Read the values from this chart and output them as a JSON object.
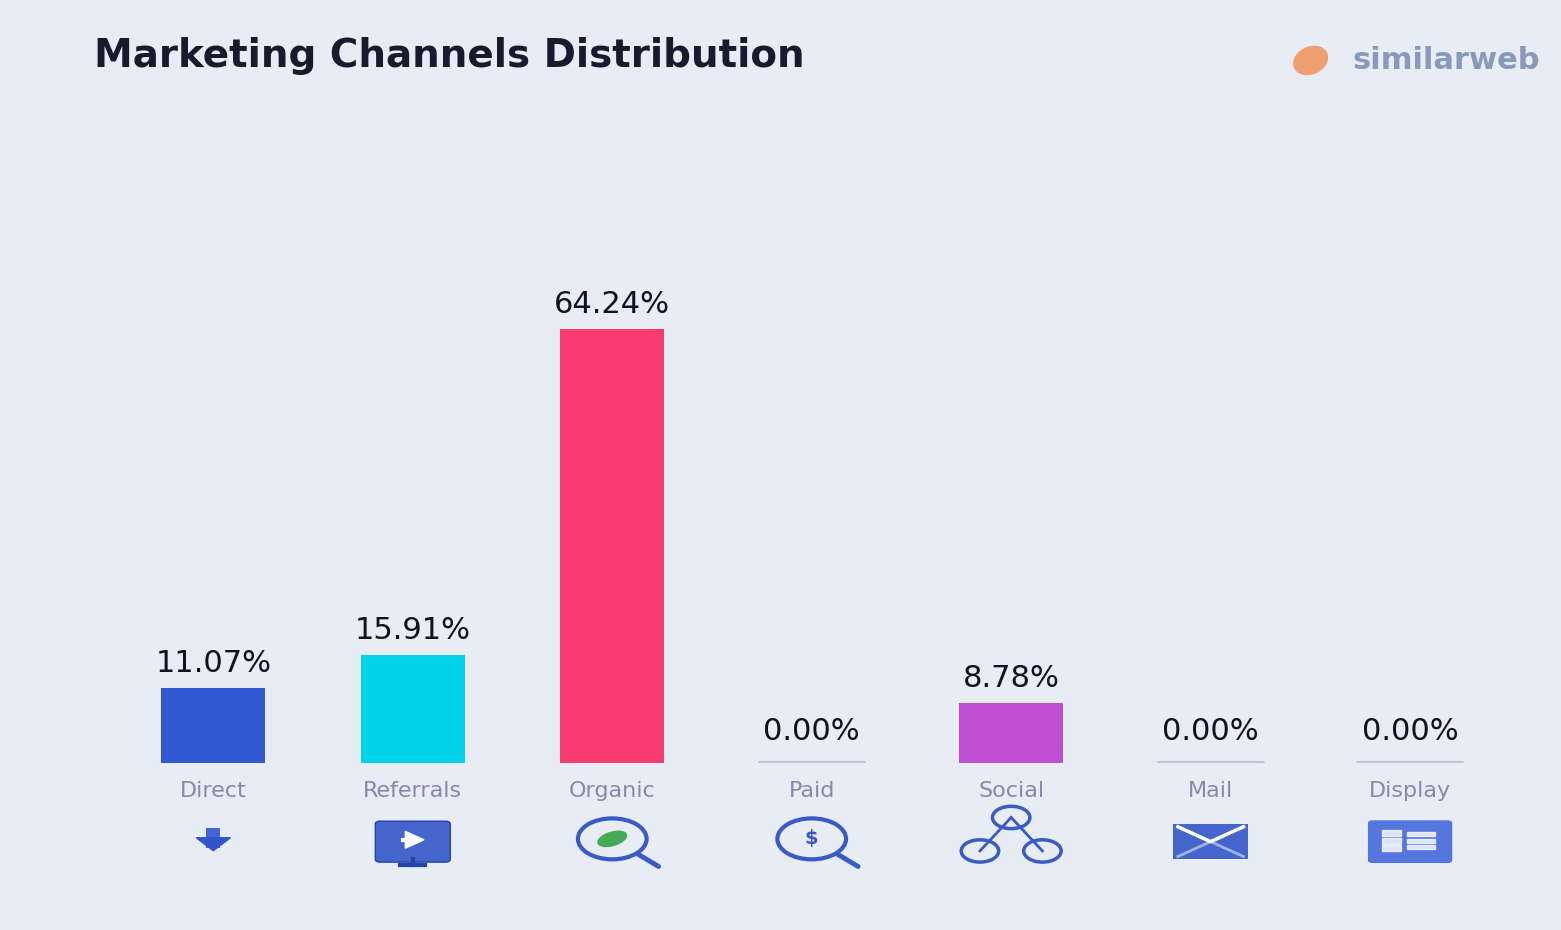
{
  "title": "Marketing Channels Distribution",
  "background_color": "#e8ecf5",
  "categories": [
    "Direct",
    "Referrals",
    "Organic",
    "Paid",
    "Social",
    "Mail",
    "Display"
  ],
  "values": [
    11.07,
    15.91,
    64.24,
    0.0,
    8.78,
    0.0,
    0.0
  ],
  "bar_colors": [
    "#3358d4",
    "#00d0e8",
    "#f73b6e",
    "#bbbbcc",
    "#bf4fd4",
    "#bbbbcc",
    "#bbbbcc"
  ],
  "bar_width": 0.52,
  "label_fontsize": 22,
  "title_fontsize": 28,
  "category_fontsize": 16,
  "title_color": "#1a1a2e",
  "label_color": "#111122",
  "category_color": "#8888aa",
  "ylim": [
    0,
    80
  ],
  "similarweb_text": "similarweb",
  "icon_blue": "#3a5bc7",
  "icon_blue_light": "#6688ee",
  "icon_mail_color": "#3a5bc7",
  "icon_mail_bg": "#4466cc",
  "icon_display_bg": "#5577dd"
}
